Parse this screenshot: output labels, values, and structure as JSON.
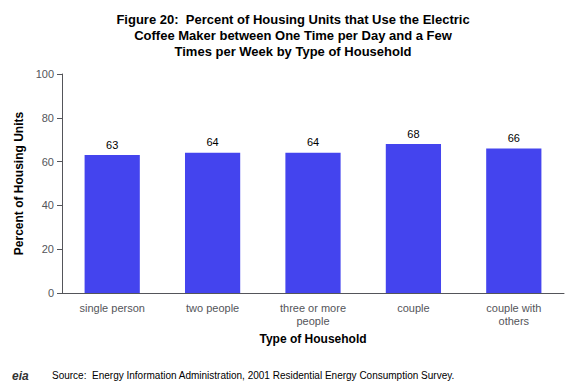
{
  "chart_data": {
    "type": "bar",
    "title": "Figure 20:  Percent of Housing Units that Use the Electric\nCoffee Maker between One Time per Day and a Few\nTimes per Week by Type of Household",
    "categories": [
      "single person",
      "two people",
      "three or more\npeople",
      "couple",
      "couple with\nothers"
    ],
    "values": [
      63,
      64,
      64,
      68,
      66
    ],
    "color": "#4444ee",
    "ylabel": "Percent of Housing Units",
    "xlabel": "Type of Household",
    "ylim": [
      0,
      100
    ],
    "yticks": [
      0,
      20,
      40,
      60,
      80,
      100
    ],
    "grid": false,
    "data_labels": true,
    "annotations": [
      "Source:  Energy Information Administration, 2001 Residential Energy Consumption Survey.",
      "eia"
    ]
  }
}
